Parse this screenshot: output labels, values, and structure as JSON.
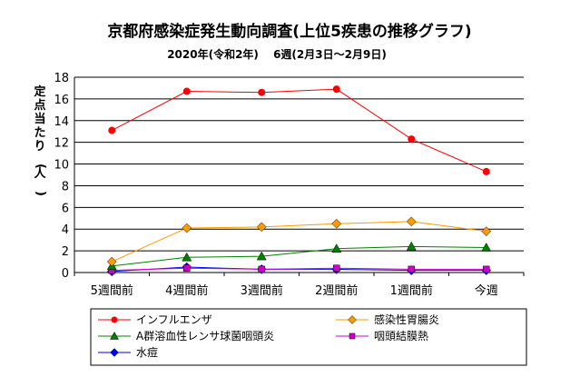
{
  "chart_data": {
    "type": "line",
    "title": "京都府感染症発生動向調査(上位5疾患の推移グラフ)",
    "subtitle": "2020年(令和2年)　 6週(2月3日～2月9日)",
    "ylabel": "定点当たり(人)",
    "xlabel": "",
    "ylim": [
      0,
      18
    ],
    "yticks": [
      0,
      2,
      4,
      6,
      8,
      10,
      12,
      14,
      16,
      18
    ],
    "grid": true,
    "legend_position": "bottom",
    "categories": [
      "5週間前",
      "4週間前",
      "3週間前",
      "2週間前",
      "1週間前",
      "今週"
    ],
    "series": [
      {
        "name": "インフルエンザ",
        "values": [
          13.1,
          16.7,
          16.6,
          16.9,
          12.3,
          9.3
        ],
        "color": "#ff0000",
        "marker": "circle"
      },
      {
        "name": "感染性胃腸炎",
        "values": [
          1.0,
          4.1,
          4.2,
          4.5,
          4.7,
          3.8
        ],
        "color": "#ff9900",
        "marker": "diamond"
      },
      {
        "name": "A群溶血性レンサ球菌咽頭炎",
        "values": [
          0.6,
          1.4,
          1.5,
          2.2,
          2.4,
          2.3
        ],
        "color": "#008000",
        "marker": "triangle"
      },
      {
        "name": "咽頭結膜熱",
        "values": [
          0.2,
          0.4,
          0.3,
          0.4,
          0.3,
          0.3
        ],
        "color": "#cc00cc",
        "marker": "square"
      },
      {
        "name": "水痘",
        "values": [
          0.1,
          0.5,
          0.3,
          0.3,
          0.2,
          0.2
        ],
        "color": "#0000ff",
        "marker": "diamond"
      }
    ]
  }
}
